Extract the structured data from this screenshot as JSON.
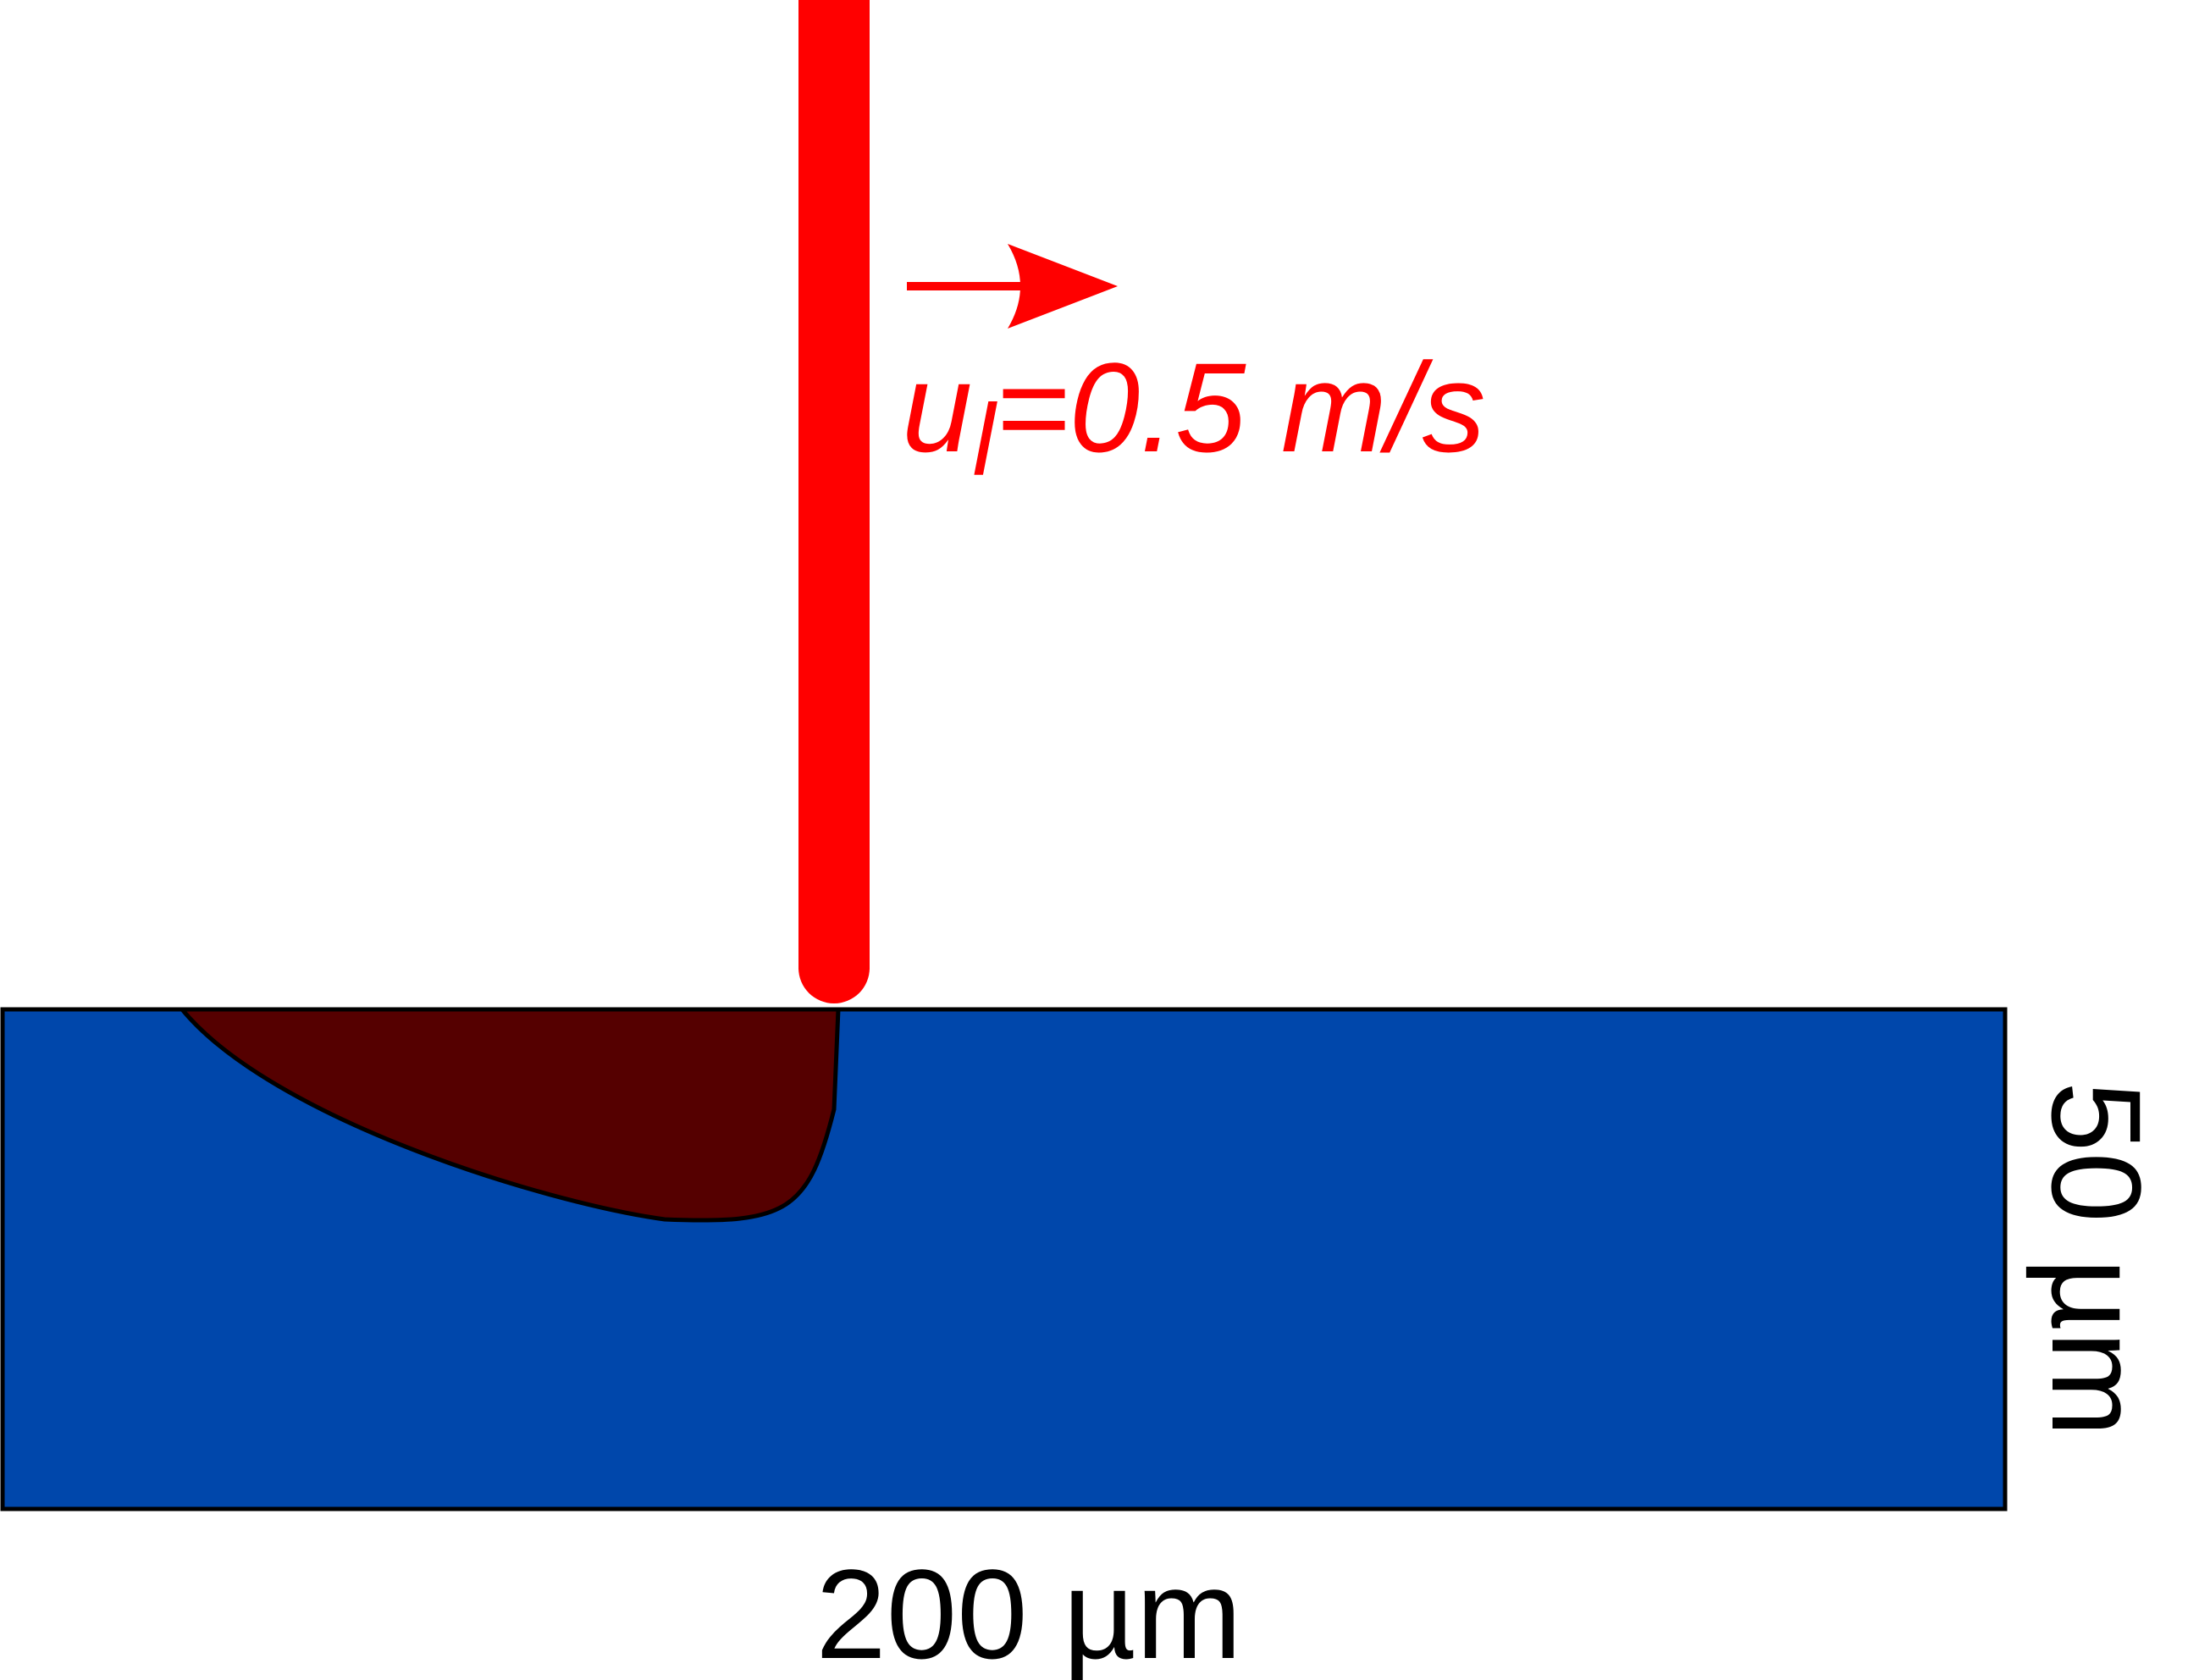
{
  "colors": {
    "substrate": "#0047ab",
    "melt_pool": "#550000",
    "laser": "#ff0000",
    "outline": "#000000",
    "label": "#000000"
  },
  "laser": {
    "velocity_label": {
      "prefix": "u",
      "subscript": "l",
      "value": "=0.5 m/s"
    },
    "arrow_icon": "right-arrow-icon"
  },
  "dimensions": {
    "width_label": "200 µm",
    "height_label": "50 µm"
  }
}
